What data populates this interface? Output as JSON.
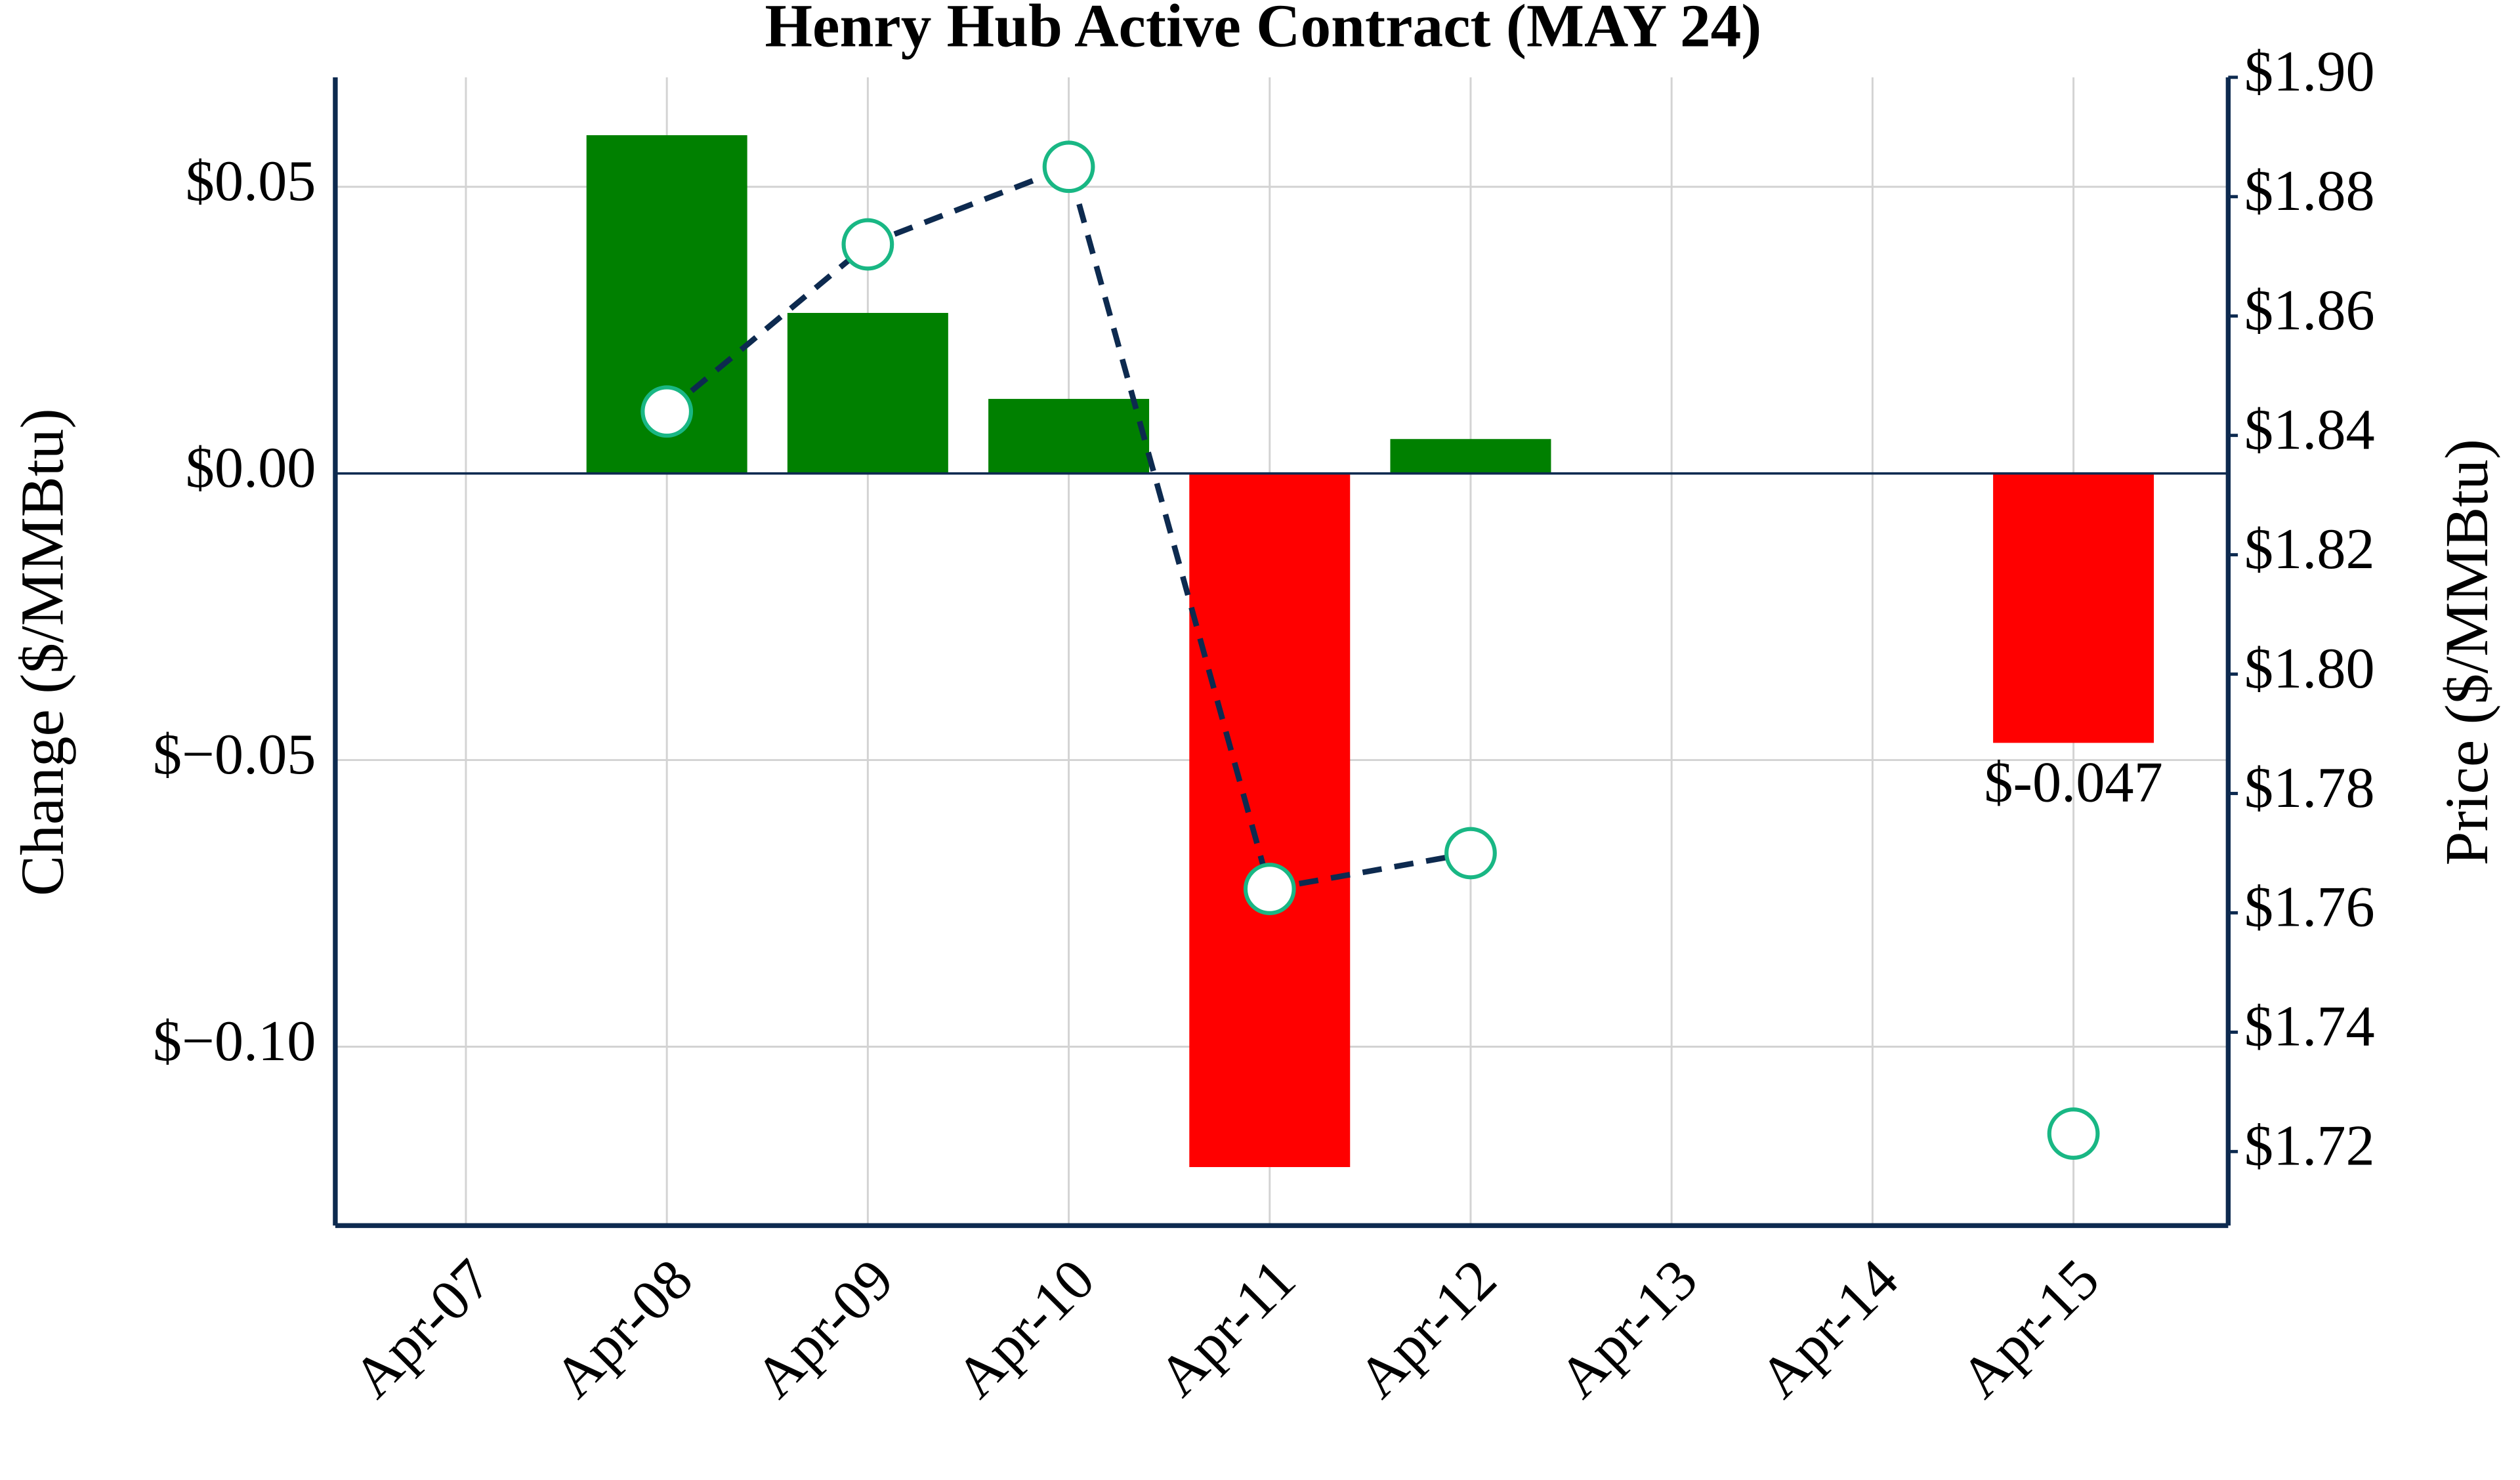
{
  "chart_data": {
    "type": "bar-line",
    "title": "Henry Hub Active Contract (MAY 24)",
    "y_label": "Change ($/MMBtu)",
    "y2_label": "Price ($/MMBtu)",
    "categories": [
      "Apr-07",
      "Apr-08",
      "Apr-09",
      "Apr-10",
      "Apr-11",
      "Apr-12",
      "Apr-13",
      "Apr-14",
      "Apr-15"
    ],
    "series": [
      {
        "name": "Change",
        "type": "bar",
        "positive_color": "#008000",
        "negative_color": "#ff0000",
        "values": [
          null,
          0.059,
          0.028,
          0.013,
          -0.121,
          0.006,
          null,
          null,
          -0.047
        ],
        "value_labels": [
          null,
          null,
          null,
          null,
          null,
          null,
          null,
          null,
          "$-0.047"
        ]
      },
      {
        "name": "Price",
        "type": "line",
        "axis": "y2",
        "color": "#0d2a4f",
        "marker_color": "#19b784",
        "values": [
          null,
          1.844,
          1.872,
          1.885,
          1.764,
          1.77,
          null,
          null,
          1.723
        ]
      }
    ],
    "ylim": [
      -0.1312,
      0.0691
    ],
    "yticks": [
      {
        "value": 0.05,
        "label": "$0.05"
      },
      {
        "value": 0,
        "label": "$0.00"
      },
      {
        "value": -0.05,
        "label": "$−0.05"
      },
      {
        "value": -0.1,
        "label": "$−0.10"
      }
    ],
    "y2lim": [
      1.7076,
      1.9
    ],
    "y2ticks": [
      {
        "value": 1.72,
        "label": "$1.72"
      },
      {
        "value": 1.74,
        "label": "$1.74"
      },
      {
        "value": 1.76,
        "label": "$1.76"
      },
      {
        "value": 1.78,
        "label": "$1.78"
      },
      {
        "value": 1.8,
        "label": "$1.80"
      },
      {
        "value": 1.82,
        "label": "$1.82"
      },
      {
        "value": 1.84,
        "label": "$1.84"
      },
      {
        "value": 1.86,
        "label": "$1.86"
      },
      {
        "value": 1.88,
        "label": "$1.88"
      },
      {
        "value": 1.9,
        "label": "$1.90"
      }
    ],
    "grid": true
  }
}
